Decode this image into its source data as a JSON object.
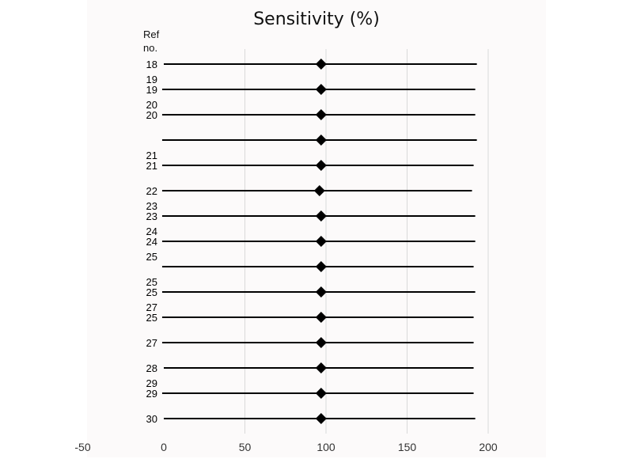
{
  "chart_data": {
    "type": "forest",
    "title": "Sensitivity (%)",
    "ylabel": "Ref\nno.",
    "xlim": [
      -50,
      200
    ],
    "xticks": [
      "-50",
      "0",
      "50",
      "100",
      "150",
      "200"
    ],
    "xtick_values": [
      -50,
      0,
      50,
      100,
      150,
      200
    ],
    "grid": "vertical",
    "marker": "diamond",
    "rows": [
      {
        "label": "18",
        "estimate": 97,
        "lower": 0,
        "upper": 193
      },
      {
        "label": "19",
        "estimate": 97,
        "lower": -1,
        "upper": 192
      },
      {
        "label": "20",
        "estimate": 97,
        "lower": -1,
        "upper": 192
      },
      {
        "label": "",
        "estimate": 97,
        "lower": -1,
        "upper": 193
      },
      {
        "label": "21",
        "estimate": 97,
        "lower": -1,
        "upper": 191
      },
      {
        "label": "22",
        "estimate": 96,
        "lower": -1,
        "upper": 190
      },
      {
        "label": "23",
        "estimate": 97,
        "lower": -1,
        "upper": 192
      },
      {
        "label": "24",
        "estimate": 97,
        "lower": -1,
        "upper": 192
      },
      {
        "label": "",
        "estimate": 97,
        "lower": -1,
        "upper": 191
      },
      {
        "label": "25",
        "estimate": 97,
        "lower": -1,
        "upper": 192
      },
      {
        "label": "25",
        "estimate": 97,
        "lower": -1,
        "upper": 191
      },
      {
        "label": "27",
        "estimate": 97,
        "lower": -1,
        "upper": 191
      },
      {
        "label": "28",
        "estimate": 97,
        "lower": 0,
        "upper": 191
      },
      {
        "label": "29",
        "estimate": 97,
        "lower": -1,
        "upper": 191
      },
      {
        "label": "30",
        "estimate": 97,
        "lower": 0,
        "upper": 192
      }
    ],
    "extra_labels": [
      {
        "label": "19",
        "row_between": [
          0,
          1
        ]
      },
      {
        "label": "20",
        "row_between": [
          1,
          2
        ]
      },
      {
        "label": "21",
        "row_between": [
          3,
          4
        ]
      },
      {
        "label": "23",
        "row_between": [
          5,
          6
        ]
      },
      {
        "label": "24",
        "row_between": [
          6,
          7
        ]
      },
      {
        "label": "25",
        "row_between": [
          7,
          8
        ]
      },
      {
        "label": "25",
        "row_between": [
          8,
          9
        ]
      },
      {
        "label": "27",
        "row_between": [
          9,
          10
        ]
      },
      {
        "label": "29",
        "row_between": [
          12,
          13
        ]
      }
    ],
    "colors": {
      "line": "#000000",
      "grid": "#d9d9d9",
      "marker": "#000000"
    }
  }
}
